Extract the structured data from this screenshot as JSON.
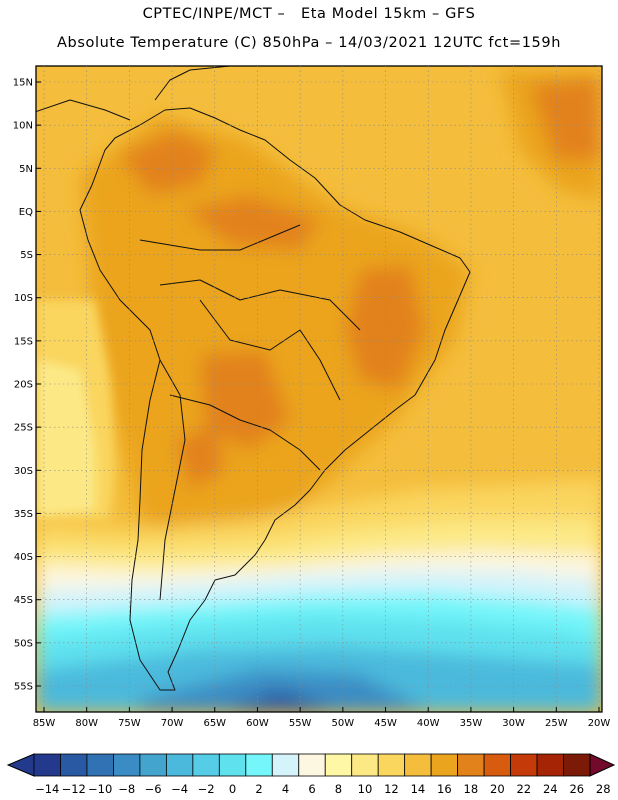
{
  "header": {
    "line1": "CPTEC/INPE/MCT –   Eta Model 15km – GFS",
    "line2": "Absolute Temperature (C) 850hPa – 14/03/2021 12UTC fct=159h"
  },
  "map": {
    "lat_labels": [
      "15N",
      "10N",
      "5N",
      "EQ",
      "5S",
      "10S",
      "15S",
      "20S",
      "25S",
      "30S",
      "35S",
      "40S",
      "45S",
      "50S",
      "55S"
    ],
    "lon_labels": [
      "85W",
      "80W",
      "75W",
      "70W",
      "65W",
      "60W",
      "55W",
      "50W",
      "45W",
      "40W",
      "35W",
      "30W",
      "25W",
      "20W"
    ],
    "lat_values": [
      15,
      10,
      5,
      0,
      -5,
      -10,
      -15,
      -20,
      -25,
      -30,
      -35,
      -40,
      -45,
      -50,
      -55
    ],
    "lon_values": [
      -85,
      -80,
      -75,
      -70,
      -65,
      -60,
      -55,
      -50,
      -45,
      -40,
      -35,
      -30,
      -25,
      -20
    ],
    "grid_lines": "dotted"
  },
  "colorbar": {
    "labels": [
      "−14",
      "−12",
      "−10",
      "−8",
      "−6",
      "−4",
      "−2",
      "0",
      "2",
      "4",
      "6",
      "8",
      "10",
      "12",
      "14",
      "16",
      "18",
      "20",
      "22",
      "24",
      "26",
      "28"
    ],
    "colors": [
      "#233a8c",
      "#2a59a4",
      "#3172b5",
      "#3a8cc4",
      "#43a4ce",
      "#4bb9dc",
      "#55cde6",
      "#5fe1ee",
      "#74f6fa",
      "#d4f3fb",
      "#fdf6e0",
      "#fdf7a6",
      "#fce986",
      "#fad65e",
      "#f4bd3c",
      "#eba41e",
      "#e2821a",
      "#d85c10",
      "#c43a08",
      "#a52406",
      "#7c1a08"
    ],
    "under_color": "#233a8c",
    "over_color": "#720a2c"
  }
}
